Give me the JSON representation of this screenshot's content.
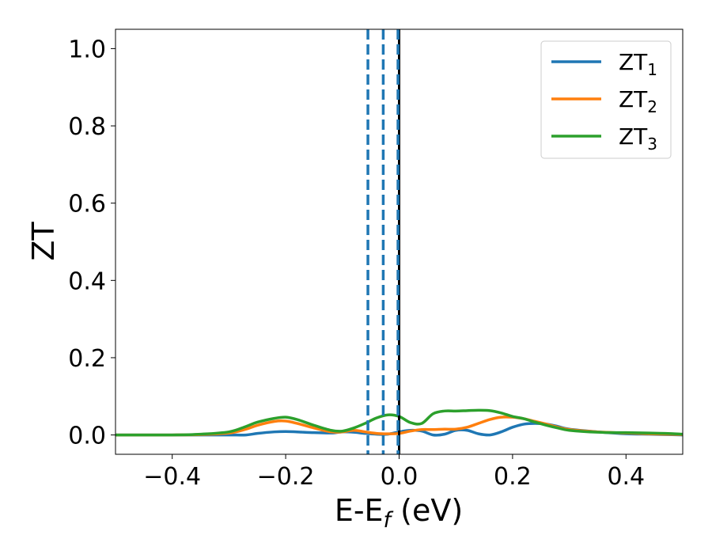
{
  "chart_data": {
    "type": "line",
    "title": "",
    "xlabel": "E-E",
    "xlabel_sub": "f",
    "xlabel_unit": " (eV)",
    "ylabel": "ZT",
    "xlim": [
      -0.5,
      0.5
    ],
    "ylim": [
      -0.05,
      1.05
    ],
    "xticks": [
      -0.4,
      -0.2,
      0.0,
      0.2,
      0.4
    ],
    "xtick_labels": [
      "−0.4",
      "−0.2",
      "0.0",
      "0.2",
      "0.4"
    ],
    "yticks": [
      0.0,
      0.2,
      0.4,
      0.6,
      0.8,
      1.0
    ],
    "ytick_labels": [
      "0.0",
      "0.2",
      "0.4",
      "0.6",
      "0.8",
      "1.0"
    ],
    "grid": false,
    "legend_position": "top-right",
    "x": [
      -0.5,
      -0.45,
      -0.4,
      -0.35,
      -0.3,
      -0.27,
      -0.25,
      -0.22,
      -0.2,
      -0.18,
      -0.15,
      -0.12,
      -0.1,
      -0.08,
      -0.06,
      -0.04,
      -0.02,
      0.0,
      0.02,
      0.04,
      0.06,
      0.08,
      0.1,
      0.12,
      0.14,
      0.16,
      0.18,
      0.2,
      0.22,
      0.24,
      0.26,
      0.28,
      0.3,
      0.35,
      0.4,
      0.44,
      0.47,
      0.5
    ],
    "series": [
      {
        "name": "ZT",
        "name_sub": "1",
        "color": "#1f77b4",
        "values": [
          0.0,
          0.0,
          0.0,
          0.0,
          0.0,
          0.0,
          0.004,
          0.008,
          0.009,
          0.008,
          0.006,
          0.005,
          0.008,
          0.007,
          0.004,
          0.002,
          0.002,
          0.008,
          0.012,
          0.01,
          0.0,
          0.002,
          0.012,
          0.012,
          0.003,
          0.0,
          0.008,
          0.02,
          0.028,
          0.03,
          0.028,
          0.022,
          0.015,
          0.008,
          0.003,
          0.002,
          0.001,
          0.0
        ]
      },
      {
        "name": "ZT",
        "name_sub": "2",
        "color": "#ff7f0e",
        "values": [
          0.0,
          0.0,
          0.0,
          0.001,
          0.005,
          0.015,
          0.025,
          0.035,
          0.036,
          0.03,
          0.018,
          0.008,
          0.008,
          0.012,
          0.008,
          0.004,
          0.003,
          0.004,
          0.01,
          0.014,
          0.014,
          0.015,
          0.015,
          0.02,
          0.03,
          0.04,
          0.046,
          0.046,
          0.042,
          0.035,
          0.028,
          0.02,
          0.014,
          0.008,
          0.005,
          0.003,
          0.002,
          0.001
        ]
      },
      {
        "name": "ZT",
        "name_sub": "3",
        "color": "#2ca02c",
        "values": [
          0.0,
          0.0,
          0.0,
          0.002,
          0.008,
          0.022,
          0.033,
          0.043,
          0.046,
          0.04,
          0.025,
          0.012,
          0.01,
          0.018,
          0.03,
          0.044,
          0.052,
          0.048,
          0.032,
          0.03,
          0.055,
          0.062,
          0.062,
          0.063,
          0.064,
          0.063,
          0.057,
          0.048,
          0.042,
          0.033,
          0.025,
          0.018,
          0.012,
          0.007,
          0.006,
          0.005,
          0.004,
          0.002
        ]
      }
    ],
    "vlines": [
      {
        "x": -0.055,
        "color": "#1f77b4",
        "style": "dashed"
      },
      {
        "x": -0.028,
        "color": "#1f77b4",
        "style": "dashed"
      },
      {
        "x": -0.002,
        "color": "#1f77b4",
        "style": "dashed"
      },
      {
        "x": 0.0,
        "color": "#000000",
        "style": "solid"
      }
    ]
  }
}
